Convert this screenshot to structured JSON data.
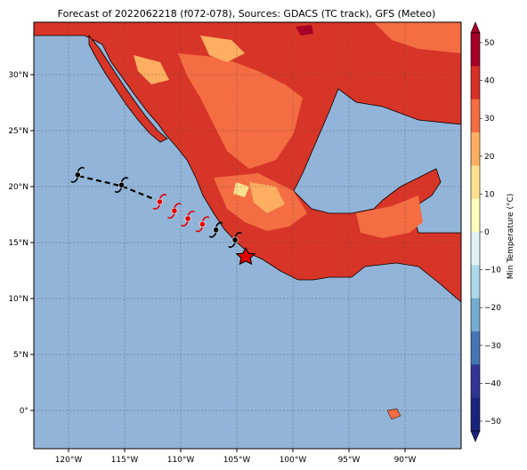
{
  "title": "Forecast of 2022062218 (f072-078), Sources: GDACS (TC track), GFS (Meteo)",
  "colors": {
    "ocean": "#92b4d8",
    "land_hot": "#d73527",
    "land_warm": "#f46d43",
    "land_mild": "#fdae61",
    "land_cool": "#fee090",
    "land_hottest": "#a50026",
    "track": "#000000",
    "storm_active": "#e00000",
    "storm_forecast": "#000000",
    "current_position": "#e00000"
  },
  "x_ticks": [
    "120°W",
    "115°W",
    "110°W",
    "105°W",
    "100°W",
    "95°W",
    "90°W"
  ],
  "y_ticks": [
    "30°N",
    "25°N",
    "20°N",
    "15°N",
    "10°N",
    "5°N",
    "0°"
  ],
  "colorbar": {
    "label": "Min Temperature (°C)",
    "ticks": [
      "50",
      "40",
      "30",
      "20",
      "10",
      "0",
      "−10",
      "−20",
      "−30",
      "−40",
      "−50"
    ],
    "colors": [
      "#a50026",
      "#d73027",
      "#f46d43",
      "#fdae61",
      "#fee090",
      "#ffffbf",
      "#e0f3f8",
      "#abd9e9",
      "#74add1",
      "#4575b4",
      "#313695",
      "#1a237e"
    ]
  },
  "track": {
    "past": [
      [
        -119.0,
        20.3
      ],
      [
        -115.2,
        19.4
      ],
      [
        -112.2,
        18.2
      ]
    ],
    "points_active": [
      [
        -111.8,
        18.0
      ],
      [
        -110.5,
        17.2
      ],
      [
        -109.3,
        16.5
      ],
      [
        -108.0,
        16.0
      ]
    ],
    "points_forecast": [
      [
        -119.1,
        20.4
      ],
      [
        -115.2,
        19.5
      ],
      [
        -106.8,
        15.5
      ],
      [
        -105.1,
        14.6
      ]
    ],
    "current": [
      -104.2,
      13.9
    ]
  }
}
